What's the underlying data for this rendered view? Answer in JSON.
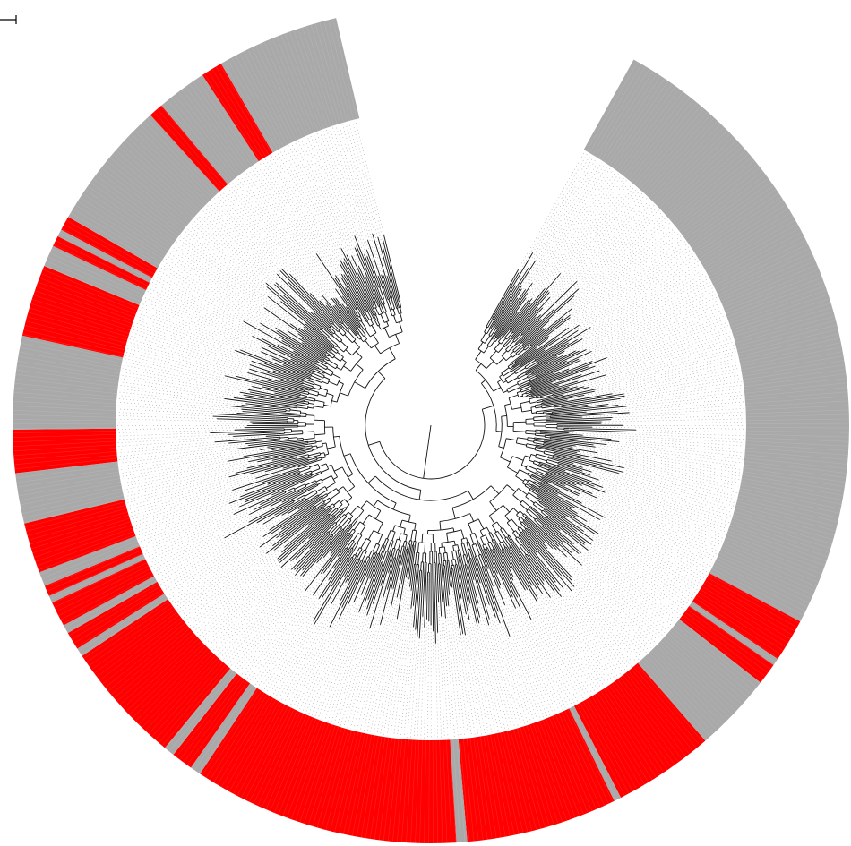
{
  "figure": {
    "kind": "circular-phylogenetic-tree",
    "colors": {
      "background": "#ffffff",
      "ring_gray": "#a9a9a9",
      "ring_red": "#ff0000",
      "ring_separator": "#c8c8c8",
      "branch": "#111111",
      "guide": "#9a9a9a"
    },
    "gap_between_ring_ends": "upper-left",
    "scale_bar": {
      "visible": true,
      "label": ""
    }
  },
  "ring_segments": [
    {
      "state": "gray",
      "extent_deg": 89
    },
    {
      "state": "red",
      "extent_deg": 6
    },
    {
      "state": "gray",
      "extent_deg": 1
    },
    {
      "state": "red",
      "extent_deg": 3
    },
    {
      "state": "gray",
      "extent_deg": 11
    },
    {
      "state": "red",
      "extent_deg": 14
    },
    {
      "state": "gray",
      "extent_deg": 1
    },
    {
      "state": "red",
      "extent_deg": 21
    },
    {
      "state": "gray",
      "extent_deg": 1.5
    },
    {
      "state": "red",
      "extent_deg": 37
    },
    {
      "state": "gray",
      "extent_deg": 1.5
    },
    {
      "state": "red",
      "extent_deg": 3
    },
    {
      "state": "gray",
      "extent_deg": 1.5
    },
    {
      "state": "red",
      "extent_deg": 17
    },
    {
      "state": "gray",
      "extent_deg": 1.2
    },
    {
      "state": "red",
      "extent_deg": 2.5
    },
    {
      "state": "gray",
      "extent_deg": 1.2
    },
    {
      "state": "red",
      "extent_deg": 3.5
    },
    {
      "state": "gray",
      "extent_deg": 1
    },
    {
      "state": "red",
      "extent_deg": 1.5
    },
    {
      "state": "gray",
      "extent_deg": 2
    },
    {
      "state": "red",
      "extent_deg": 7
    },
    {
      "state": "gray",
      "extent_deg": 7
    },
    {
      "state": "red",
      "extent_deg": 6
    },
    {
      "state": "gray",
      "extent_deg": 13
    },
    {
      "state": "red",
      "extent_deg": 10
    },
    {
      "state": "gray",
      "extent_deg": 3
    },
    {
      "state": "red",
      "extent_deg": 1.5
    },
    {
      "state": "gray",
      "extent_deg": 1
    },
    {
      "state": "red",
      "extent_deg": 2
    },
    {
      "state": "gray",
      "extent_deg": 18
    },
    {
      "state": "red",
      "extent_deg": 2
    },
    {
      "state": "gray",
      "extent_deg": 7
    },
    {
      "state": "red",
      "extent_deg": 3
    },
    {
      "state": "gray",
      "extent_deg": 17
    }
  ]
}
